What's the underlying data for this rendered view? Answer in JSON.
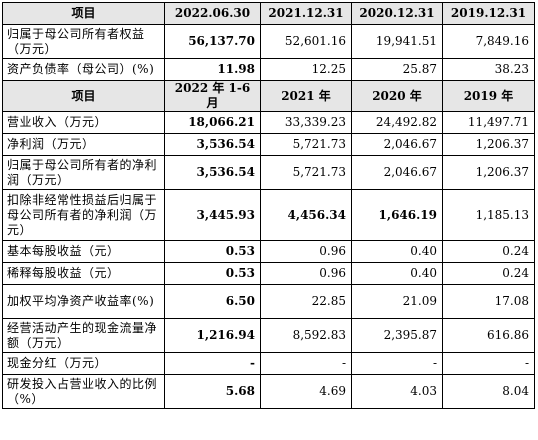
{
  "table1": {
    "headers": [
      "项目",
      "2022.06.30",
      "2021.12.31",
      "2020.12.31",
      "2019.12.31"
    ],
    "rows": [
      {
        "label": "归属于母公司所有者权益（万元）",
        "values": [
          "56,137.70",
          "52,601.16",
          "19,941.51",
          "7,849.16"
        ]
      },
      {
        "label": "资产负债率（母公司）(%)",
        "values": [
          "11.98",
          "12.25",
          "25.87",
          "38.23"
        ]
      }
    ]
  },
  "table2": {
    "headers": [
      "项目",
      "2022 年 1-6 月",
      "2021 年",
      "2020 年",
      "2019 年"
    ],
    "rows": [
      {
        "label": "营业收入（万元）",
        "values": [
          "18,066.21",
          "33,339.23",
          "24,492.82",
          "11,497.71"
        ]
      },
      {
        "label": "净利润（万元）",
        "values": [
          "3,536.54",
          "5,721.73",
          "2,046.67",
          "1,206.37"
        ]
      },
      {
        "label": "归属于母公司所有者的净利润（万元）",
        "values": [
          "3,536.54",
          "5,721.73",
          "2,046.67",
          "1,206.37"
        ]
      },
      {
        "label": "扣除非经常性损益后归属于母公司所有者的净利润（万元）",
        "values": [
          "3,445.93",
          "4,456.34",
          "1,646.19",
          "1,185.13"
        ]
      },
      {
        "label": "基本每股收益（元）",
        "values": [
          "0.53",
          "0.96",
          "0.40",
          "0.24"
        ]
      },
      {
        "label": "稀释每股收益（元）",
        "values": [
          "0.53",
          "0.96",
          "0.40",
          "0.24"
        ]
      },
      {
        "label": "加权平均净资产收益率(%)",
        "values": [
          "6.50",
          "22.85",
          "21.09",
          "17.08"
        ]
      },
      {
        "label": "经营活动产生的现金流量净额（万元）",
        "values": [
          "1,216.94",
          "8,592.83",
          "2,395.87",
          "616.86"
        ]
      },
      {
        "label": "现金分红（万元）",
        "values": [
          "-",
          "-",
          "-",
          "-"
        ]
      },
      {
        "label": "研发投入占营业收入的比例（%）",
        "values": [
          "5.68",
          "4.69",
          "4.03",
          "8.04"
        ]
      }
    ]
  }
}
